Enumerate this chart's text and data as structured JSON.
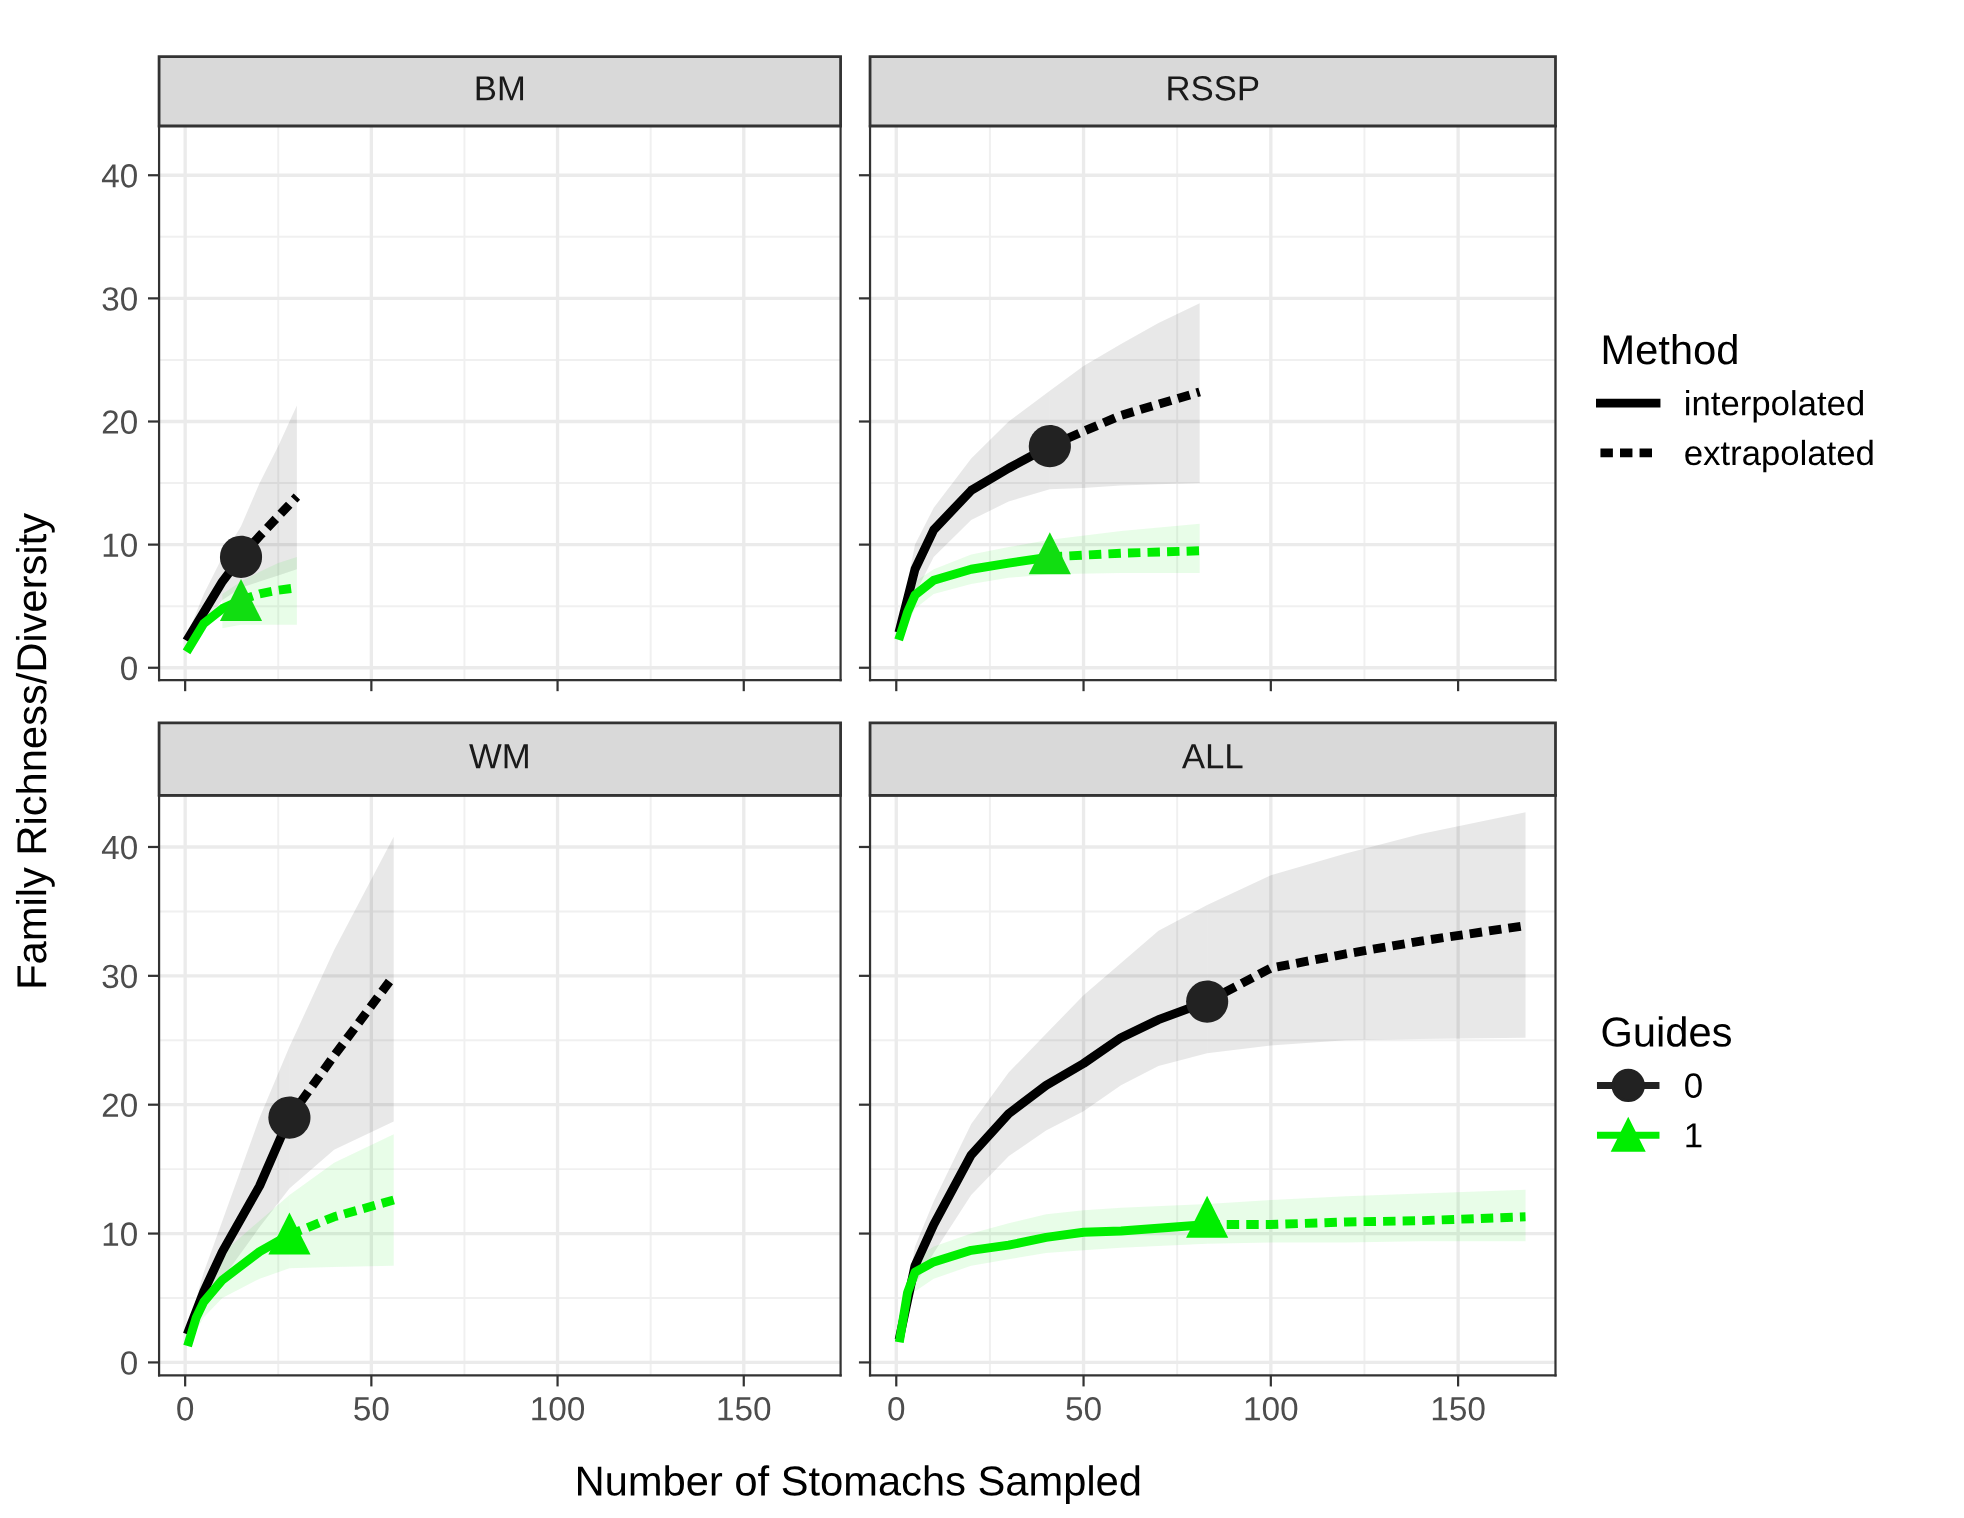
{
  "chart_data": [
    {
      "type": "line",
      "title": "BM",
      "xlabel": "Number of Stomachs Sampled",
      "ylabel": "Family Richness/Diversity",
      "xlim": [
        -7,
        176
      ],
      "ylim": [
        -1,
        44
      ],
      "xticks": [
        0,
        50,
        100,
        150
      ],
      "yticks": [
        0,
        10,
        20,
        30,
        40
      ],
      "tick_labels": "y",
      "grid": true,
      "series": [
        {
          "color": "#000000",
          "line_style": "solid",
          "x": [
            1,
            5,
            10,
            15
          ],
          "values": [
            2.5,
            4.5,
            7,
            9
          ],
          "lower": [
            2,
            3.5,
            5.5,
            6.5
          ],
          "upper": [
            3,
            6,
            9,
            11.5
          ]
        },
        {
          "color": "#000000",
          "line_style": "dashed",
          "x": [
            15,
            20,
            25,
            30
          ],
          "values": [
            9,
            10.7,
            12.3,
            13.9
          ],
          "lower": [
            6.5,
            7,
            7.5,
            8
          ],
          "upper": [
            11.5,
            15,
            18,
            21.3
          ]
        },
        {
          "color": "#00ee00",
          "line_style": "solid",
          "x": [
            1,
            5,
            10,
            15
          ],
          "values": [
            1.6,
            3.6,
            4.8,
            5.5
          ],
          "lower": [
            null,
            null,
            3.2,
            3.5
          ],
          "upper": [
            null,
            null,
            6,
            7
          ]
        },
        {
          "color": "#00ee00",
          "line_style": "dashed",
          "x": [
            15,
            20,
            25,
            30
          ],
          "values": [
            5.5,
            6,
            6.3,
            6.5
          ],
          "lower": [
            3.5,
            3.5,
            3.5,
            3.5
          ],
          "upper": [
            7,
            7.8,
            8.5,
            9
          ]
        },
        {
          "type": "scatter",
          "color": "#222222",
          "marker": "circle",
          "x": [
            15
          ],
          "values": [
            9
          ]
        },
        {
          "type": "scatter",
          "color": "#11dd11",
          "marker": "triangle",
          "x": [
            15
          ],
          "values": [
            5.5
          ]
        }
      ]
    },
    {
      "type": "line",
      "title": "RSSP",
      "xlim": [
        -7,
        176
      ],
      "ylim": [
        -1,
        44
      ],
      "xticks": [
        0,
        50,
        100,
        150
      ],
      "yticks": [
        0,
        10,
        20,
        30,
        40
      ],
      "tick_labels": false,
      "grid": true,
      "legend": "right",
      "legend_title": "Method",
      "series": [
        {
          "name": "interpolated",
          "color": "#000000",
          "line_style": "solid",
          "x": [
            1,
            5,
            10,
            20,
            30,
            41
          ],
          "values": [
            3.2,
            8,
            11.2,
            14.4,
            16.2,
            18
          ],
          "lower": [
            2.5,
            6,
            9,
            12,
            13.5,
            14.5
          ],
          "upper": [
            3.8,
            10,
            13,
            17,
            20,
            22.5
          ]
        },
        {
          "name": "extrapolated",
          "color": "#000000",
          "line_style": "dashed",
          "x": [
            41,
            50,
            60,
            70,
            81
          ],
          "values": [
            18,
            19.2,
            20.5,
            21.4,
            22.4
          ],
          "lower": [
            14.5,
            14.6,
            14.8,
            14.9,
            15
          ],
          "upper": [
            22.5,
            24.5,
            26.3,
            28,
            29.6
          ]
        },
        {
          "color": "#00ee00",
          "line_style": "solid",
          "x": [
            1,
            3,
            5,
            10,
            20,
            30,
            41
          ],
          "values": [
            2.6,
            4.5,
            5.9,
            7.1,
            8,
            8.5,
            9
          ],
          "lower": [
            null,
            3.5,
            4.8,
            6,
            6.8,
            7.3,
            7.6
          ],
          "upper": [
            null,
            5.5,
            7,
            8,
            9.2,
            9.8,
            10.4
          ]
        },
        {
          "color": "#00ee00",
          "line_style": "dashed",
          "x": [
            41,
            60,
            81
          ],
          "values": [
            9,
            9.3,
            9.5
          ],
          "lower": [
            7.6,
            7.7,
            7.7
          ],
          "upper": [
            10.4,
            11.1,
            11.7
          ]
        },
        {
          "type": "scatter",
          "color": "#222222",
          "marker": "circle",
          "x": [
            41
          ],
          "values": [
            18
          ]
        },
        {
          "type": "scatter",
          "color": "#11dd11",
          "marker": "triangle",
          "x": [
            41
          ],
          "values": [
            9.3
          ]
        }
      ]
    },
    {
      "type": "line",
      "title": "WM",
      "xlim": [
        -7,
        176
      ],
      "ylim": [
        -1,
        44
      ],
      "xticks": [
        0,
        50,
        100,
        150
      ],
      "yticks": [
        0,
        10,
        20,
        30,
        40
      ],
      "grid": true,
      "series": [
        {
          "color": "#000000",
          "line_style": "solid",
          "x": [
            1,
            5,
            10,
            20,
            28
          ],
          "values": [
            2.5,
            5.5,
            8.6,
            13.7,
            19
          ],
          "lower": [
            2,
            4.5,
            6.5,
            10.5,
            13.5
          ],
          "upper": [
            3,
            7,
            11,
            19,
            24.5
          ]
        },
        {
          "color": "#000000",
          "line_style": "dashed",
          "x": [
            28,
            40,
            56
          ],
          "values": [
            19,
            23.8,
            30
          ],
          "lower": [
            13.5,
            16.5,
            18.7
          ],
          "upper": [
            24.5,
            32,
            40.8
          ]
        },
        {
          "color": "#00ee00",
          "line_style": "solid",
          "x": [
            1,
            3,
            5,
            10,
            20,
            28
          ],
          "values": [
            1.6,
            3.5,
            4.7,
            6.4,
            8.6,
            9.9
          ],
          "lower": [
            1.2,
            2.5,
            3.5,
            5,
            6.5,
            7.3
          ],
          "upper": [
            2.2,
            4.5,
            6,
            8.5,
            11,
            13
          ]
        },
        {
          "color": "#00ee00",
          "line_style": "dashed",
          "x": [
            28,
            40,
            56
          ],
          "values": [
            9.9,
            11.3,
            12.6
          ],
          "lower": [
            7.3,
            7.4,
            7.5
          ],
          "upper": [
            13,
            15.5,
            17.7
          ]
        },
        {
          "type": "scatter",
          "color": "#222222",
          "marker": "circle",
          "x": [
            28
          ],
          "values": [
            19
          ]
        },
        {
          "type": "scatter",
          "color": "#00ee00",
          "marker": "triangle",
          "x": [
            28
          ],
          "values": [
            10
          ]
        }
      ]
    },
    {
      "type": "line",
      "title": "ALL",
      "xlim": [
        -7,
        176
      ],
      "ylim": [
        -1,
        44
      ],
      "xticks": [
        0,
        50,
        100,
        150
      ],
      "yticks": [
        0,
        10,
        20,
        30,
        40
      ],
      "tick_labels": "x",
      "grid": true,
      "legend": "right",
      "legend_title": "Guides",
      "series": [
        {
          "color": "#000000",
          "line_style": "solid",
          "x": [
            1,
            5,
            10,
            20,
            30,
            40,
            50,
            60,
            70,
            83
          ],
          "values": [
            2.1,
            7.5,
            10.7,
            16.1,
            19.3,
            21.5,
            23.2,
            25.2,
            26.6,
            28
          ],
          "lower": [
            2,
            6,
            8.5,
            13,
            16,
            18,
            19.5,
            21.5,
            23,
            24
          ],
          "upper": [
            2.5,
            9,
            12.5,
            18.5,
            22.5,
            25.5,
            28.5,
            31,
            33.5,
            35.5
          ]
        },
        {
          "color": "#000000",
          "line_style": "dashed",
          "x": [
            83,
            100,
            120,
            140,
            168
          ],
          "values": [
            28,
            30.6,
            31.7,
            32.7,
            33.9
          ],
          "lower": [
            24,
            24.6,
            25,
            25.1,
            25.2
          ],
          "upper": [
            35.5,
            37.8,
            39.5,
            41,
            42.7
          ]
        },
        {
          "color": "#00ee00",
          "line_style": "solid",
          "x": [
            1,
            3,
            5,
            10,
            20,
            30,
            40,
            50,
            60,
            83
          ],
          "values": [
            1.9,
            5.4,
            7,
            7.8,
            8.7,
            9.1,
            9.7,
            10.1,
            10.2,
            10.7
          ],
          "lower": [
            1.5,
            4.5,
            5.5,
            6.5,
            7.5,
            8,
            8.5,
            8.7,
            8.9,
            9.2
          ],
          "upper": [
            2.5,
            6.5,
            8,
            9,
            10,
            10.8,
            11.5,
            11.8,
            12,
            12.3
          ]
        },
        {
          "color": "#00ee00",
          "line_style": "dashed",
          "x": [
            83,
            100,
            120,
            140,
            168
          ],
          "values": [
            10.7,
            10.7,
            10.9,
            11,
            11.3
          ],
          "lower": [
            9.2,
            9.3,
            9.3,
            9.4,
            9.4
          ],
          "upper": [
            12.3,
            12.6,
            12.9,
            13.1,
            13.4
          ]
        },
        {
          "type": "scatter",
          "name": "0",
          "color": "#222222",
          "marker": "circle",
          "x": [
            83
          ],
          "values": [
            28
          ]
        },
        {
          "type": "scatter",
          "name": "1",
          "color": "#00ee00",
          "marker": "triangle",
          "x": [
            83
          ],
          "values": [
            11.3
          ]
        }
      ]
    }
  ]
}
